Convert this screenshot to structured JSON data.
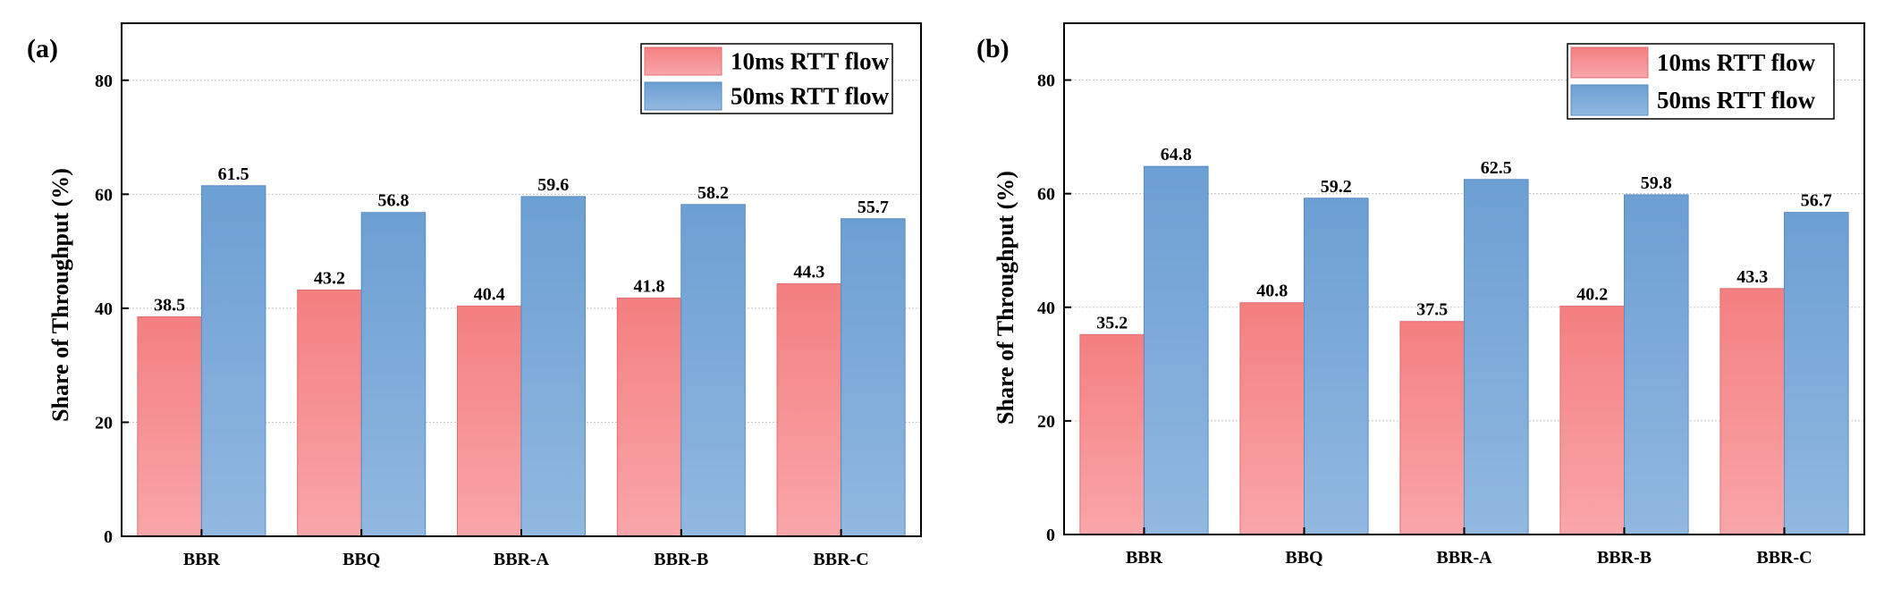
{
  "chart_data": [
    {
      "type": "bar",
      "panel": "(a)",
      "categories": [
        "BBR",
        "BBQ",
        "BBR-A",
        "BBR-B",
        "BBR-C"
      ],
      "series": [
        {
          "name": "10ms RTT flow",
          "values": [
            38.5,
            43.2,
            40.4,
            41.8,
            44.3
          ],
          "color": "#f47f80"
        },
        {
          "name": "50ms RTT flow",
          "values": [
            61.5,
            56.8,
            59.6,
            58.2,
            55.7
          ],
          "color": "#6c9fd3"
        }
      ],
      "ylabel": "Share of  Throughput (%)",
      "xlabel": "",
      "ylim": [
        0,
        90
      ],
      "yticks": [
        "0",
        "20",
        "40",
        "60",
        "80"
      ],
      "value_labels": [
        [
          "38.5",
          "43.2",
          "40.4",
          "41.8",
          "44.3"
        ],
        [
          "61.5",
          "56.8",
          "59.6",
          "58.2",
          "55.7"
        ]
      ],
      "legend_position": "top-right"
    },
    {
      "type": "bar",
      "panel": "(b)",
      "categories": [
        "BBR",
        "BBQ",
        "BBR-A",
        "BBR-B",
        "BBR-C"
      ],
      "series": [
        {
          "name": "10ms RTT flow",
          "values": [
            35.2,
            40.8,
            37.5,
            40.2,
            43.3
          ],
          "color": "#f47f80"
        },
        {
          "name": "50ms RTT flow",
          "values": [
            64.8,
            59.2,
            62.5,
            59.8,
            56.7
          ],
          "color": "#6c9fd3"
        }
      ],
      "ylabel": "Share of  Throughput (%)",
      "xlabel": "",
      "ylim": [
        0,
        90
      ],
      "yticks": [
        "0",
        "20",
        "40",
        "60",
        "80"
      ],
      "value_labels": [
        [
          "35.2",
          "40.8",
          "37.5",
          "40.2",
          "43.3"
        ],
        [
          "64.8",
          "59.2",
          "62.5",
          "59.8",
          "56.7"
        ]
      ],
      "legend_position": "top-right"
    }
  ]
}
